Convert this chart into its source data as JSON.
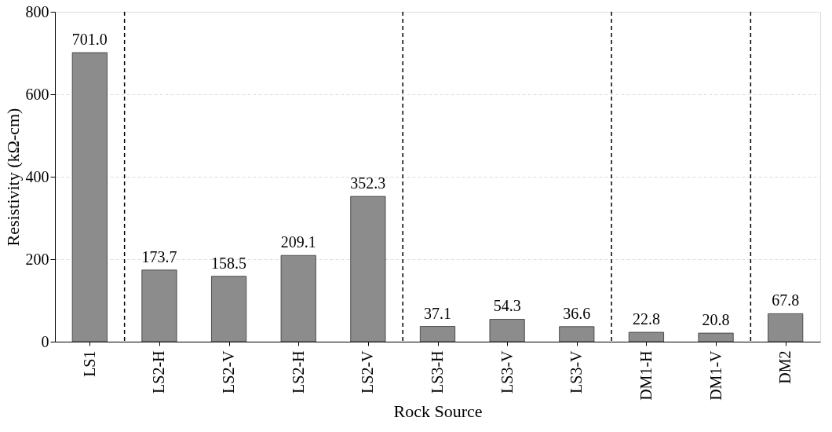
{
  "chart_data": {
    "type": "bar",
    "xlabel": "Rock Source",
    "ylabel": "Resistivity (kΩ-cm)",
    "categories": [
      "LS1",
      "LS2-H",
      "LS2-V",
      "LS2-H",
      "LS2-V",
      "LS3-H",
      "LS3-V",
      "LS3-V",
      "DM1-H",
      "DM1-V",
      "DM2"
    ],
    "values": [
      701.0,
      173.7,
      158.5,
      209.1,
      352.3,
      37.1,
      54.3,
      36.6,
      22.8,
      20.8,
      67.8
    ],
    "value_labels": [
      "701.0",
      "173.7",
      "158.5",
      "209.1",
      "352.3",
      "37.1",
      "54.3",
      "36.6",
      "22.8",
      "20.8",
      "67.8"
    ],
    "color": "#8c8c8c",
    "ylim": [
      0,
      800
    ],
    "yticks": [
      0,
      200,
      400,
      600,
      800
    ],
    "grid": "y"
  }
}
